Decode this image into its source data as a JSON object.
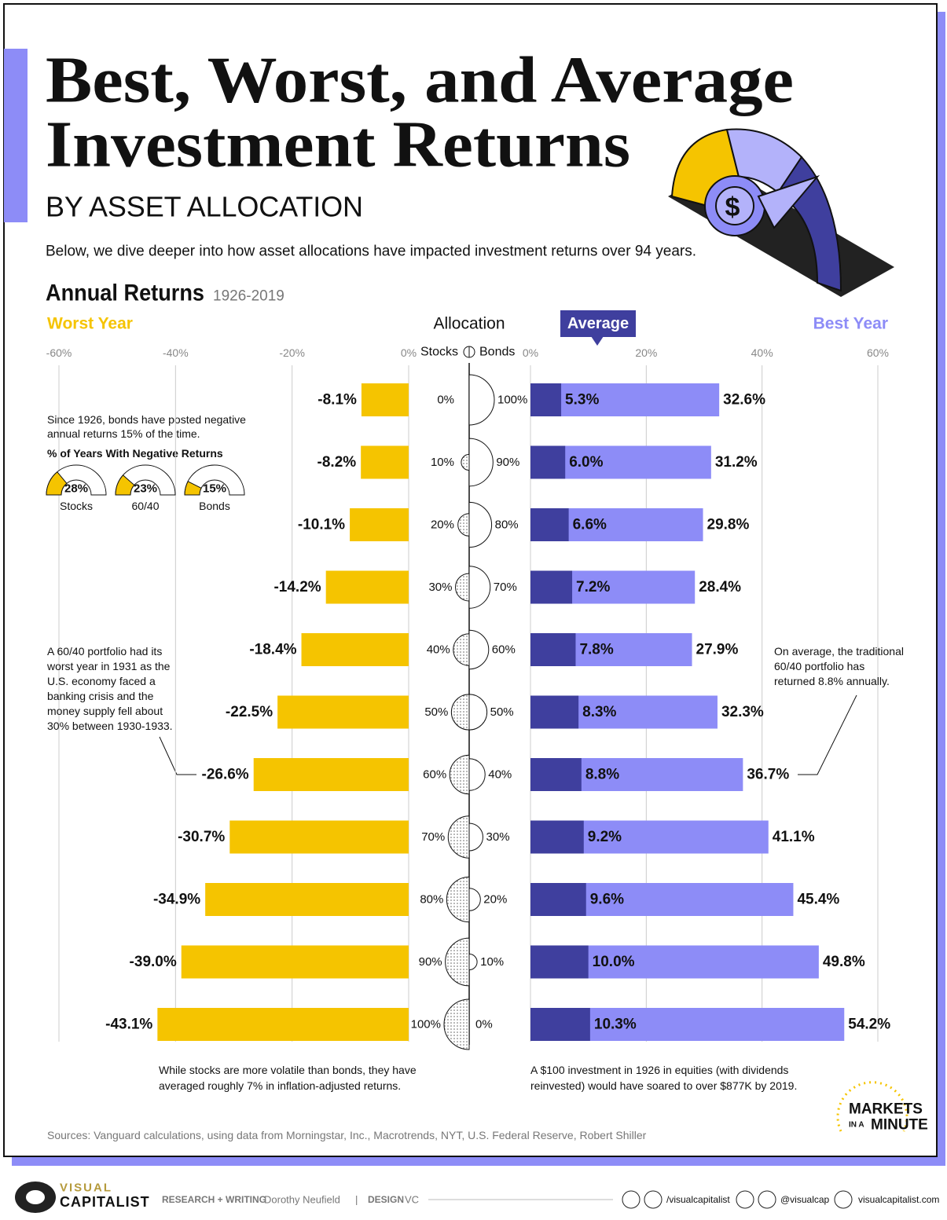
{
  "header": {
    "title_lines": [
      "Best, Worst, and Average",
      "Investment Returns"
    ],
    "subtitle": "BY ASSET ALLOCATION",
    "intro": "Below, we dive deeper into how asset allocations have impacted investment returns over 94 years."
  },
  "chart_data": {
    "type": "diverging-bar",
    "title": "Annual Returns",
    "subtitle": "1926-2019",
    "allocation_title": "Allocation",
    "stocks_label": "Stocks",
    "bonds_label": "Bonds",
    "allocations": [
      {
        "stocks": {
          "value": 0,
          "label": "0%"
        },
        "bonds": {
          "value": 100,
          "label": "100%"
        }
      },
      {
        "stocks": {
          "value": 10,
          "label": "10%"
        },
        "bonds": {
          "value": 90,
          "label": "90%"
        }
      },
      {
        "stocks": {
          "value": 20,
          "label": "20%"
        },
        "bonds": {
          "value": 80,
          "label": "80%"
        }
      },
      {
        "stocks": {
          "value": 30,
          "label": "30%"
        },
        "bonds": {
          "value": 70,
          "label": "70%"
        }
      },
      {
        "stocks": {
          "value": 40,
          "label": "40%"
        },
        "bonds": {
          "value": 60,
          "label": "60%"
        }
      },
      {
        "stocks": {
          "value": 50,
          "label": "50%"
        },
        "bonds": {
          "value": 50,
          "label": "50%"
        }
      },
      {
        "stocks": {
          "value": 60,
          "label": "60%"
        },
        "bonds": {
          "value": 40,
          "label": "40%"
        }
      },
      {
        "stocks": {
          "value": 70,
          "label": "70%"
        },
        "bonds": {
          "value": 30,
          "label": "30%"
        }
      },
      {
        "stocks": {
          "value": 80,
          "label": "80%"
        },
        "bonds": {
          "value": 20,
          "label": "20%"
        }
      },
      {
        "stocks": {
          "value": 90,
          "label": "90%"
        },
        "bonds": {
          "value": 10,
          "label": "10%"
        }
      },
      {
        "stocks": {
          "value": 100,
          "label": "100%"
        },
        "bonds": {
          "value": 0,
          "label": "0%"
        }
      }
    ],
    "series": [
      {
        "name": "Worst Year",
        "color": "#f5c400",
        "axis": "x",
        "values": [
          -8.1,
          -8.2,
          -10.1,
          -14.2,
          -18.4,
          -22.5,
          -26.6,
          -30.7,
          -34.9,
          -39.0,
          -43.1
        ],
        "value_labels": [
          "-8.1%",
          "-8.2%",
          "-10.1%",
          "-14.2%",
          "-18.4%",
          "-22.5%",
          "-26.6%",
          "-30.7%",
          "-34.9%",
          "-39.0%",
          "-43.1%"
        ]
      },
      {
        "name": "Best Year",
        "color": "#8d8cf7",
        "axis": "x2",
        "values": [
          32.6,
          31.2,
          29.8,
          28.4,
          27.9,
          32.3,
          36.7,
          41.1,
          45.4,
          49.8,
          54.2
        ],
        "value_labels": [
          "32.6%",
          "31.2%",
          "29.8%",
          "28.4%",
          "27.9%",
          "32.3%",
          "36.7%",
          "41.1%",
          "45.4%",
          "49.8%",
          "54.2%"
        ]
      },
      {
        "name": "Average",
        "color": "#3f3f9e",
        "axis": "x2",
        "values": [
          5.3,
          6.0,
          6.6,
          7.2,
          7.8,
          8.3,
          8.8,
          9.2,
          9.6,
          10.0,
          10.3
        ],
        "value_labels": [
          "5.3%",
          "6.0%",
          "6.6%",
          "7.2%",
          "7.8%",
          "8.3%",
          "8.8%",
          "9.2%",
          "9.6%",
          "10.0%",
          "10.3%"
        ]
      }
    ],
    "xlim": [
      -60,
      0
    ],
    "xticks": [
      {
        "value": -60,
        "label": "-60%"
      },
      {
        "value": -40,
        "label": "-40%"
      },
      {
        "value": -20,
        "label": "-20%"
      },
      {
        "value": 0,
        "label": "0%"
      }
    ],
    "x2lim": [
      0,
      60
    ],
    "x2ticks": [
      {
        "value": 0,
        "label": "0%"
      },
      {
        "value": 20,
        "label": "20%"
      },
      {
        "value": 40,
        "label": "40%"
      },
      {
        "value": 60,
        "label": "60%"
      }
    ],
    "grid": true
  },
  "gauges": {
    "intro": [
      "Since 1926, bonds have posted negative",
      "annual returns 15% of the time."
    ],
    "title": "% of Years With Negative Returns",
    "color": "#f5c400",
    "items": [
      {
        "label": "Stocks",
        "value": 28,
        "value_label": "28%"
      },
      {
        "label": "60/40",
        "value": 23,
        "value_label": "23%"
      },
      {
        "label": "Bonds",
        "value": 15,
        "value_label": "15%"
      }
    ]
  },
  "annotations": {
    "sixty_forty": [
      "A 60/40 portfolio had its",
      "worst year in 1931 as the",
      "U.S. economy faced a",
      "banking crisis and the",
      "money supply fell about",
      "30% between 1930-1933."
    ],
    "average_note": [
      "On average, the traditional",
      "60/40 portfolio has",
      "returned 8.8% annually."
    ],
    "stocks_note": [
      "While stocks are more volatile than bonds, they have",
      "averaged roughly 7% in inflation-adjusted returns."
    ],
    "equities_note": [
      "A $100 investment in 1926 in equities (with dividends",
      "reinvested) would have soared to over $877K by 2019."
    ]
  },
  "sources": "Sources: Vanguard calculations, using data from Morningstar, Inc., Macrotrends, NYT, U.S. Federal Reserve, Robert Shiller",
  "brand": {
    "lines": [
      "MARKETS",
      "IN A",
      "MINUTE"
    ]
  },
  "footer": {
    "logo_top": "VISUAL",
    "logo_bottom": "CAPITALIST",
    "research_label": "RESEARCH + WRITING",
    "research_name": "Dorothy Neufield",
    "separator": "|",
    "design_label": "DESIGN",
    "design_name": "VC",
    "facebook_youtube": "/visualcapitalist",
    "twitter_instagram": "@visualcap",
    "website": "visualcapitalist.com"
  }
}
